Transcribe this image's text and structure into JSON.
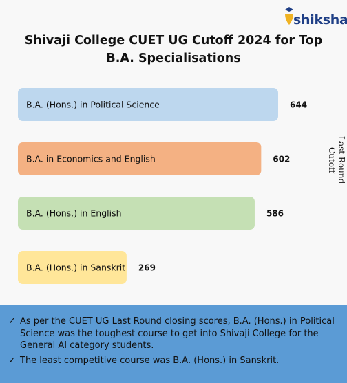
{
  "brand": {
    "name": "shiksha"
  },
  "chart_data": {
    "type": "bar",
    "orientation": "horizontal",
    "title": "Shivaji College CUET UG Cutoff 2024 for Top B.A. Specialisations",
    "ylabel": "Last Round Cutoff",
    "categories": [
      "B.A. (Hons.) in Political Science",
      "B.A. in Economics and English",
      "B.A. (Hons.) in English",
      "B.A. (Hons.) in Sanskrit"
    ],
    "values": [
      644,
      602,
      586,
      269
    ],
    "colors": [
      "#bdd7ee",
      "#f4b183",
      "#c5e0b4",
      "#ffe699"
    ],
    "grid": false,
    "legend": "none"
  },
  "notes": {
    "check_icon": "check-icon",
    "bullets": [
      "As per the CUET UG Last Round closing scores, B.A. (Hons.) in Political Science was the toughest course to get into Shivaji College for the General AI category students.",
      "The least competitive course was B.A. (Hons.) in Sanskrit."
    ]
  }
}
